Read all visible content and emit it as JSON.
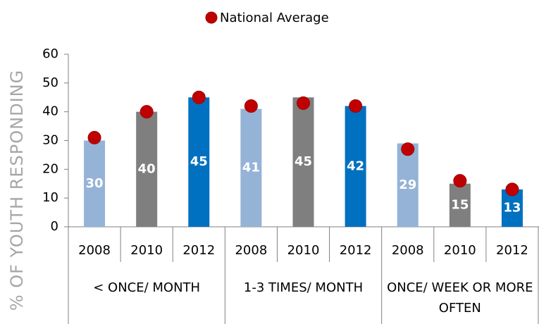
{
  "chart_data": {
    "type": "bar",
    "legend": {
      "name": "National Average",
      "color": "#c00000"
    },
    "y_label": "% OF YOUTH RESPONDING",
    "ylim": [
      0,
      60
    ],
    "yticks": [
      0,
      10,
      20,
      30,
      40,
      50,
      60
    ],
    "grid": false,
    "colors": [
      "#95b3d7",
      "#7f7f7f",
      "#0070c0"
    ],
    "groups": [
      {
        "label": "< ONCE/ MONTH",
        "categories": [
          "2008",
          "2010",
          "2012"
        ],
        "values": [
          30,
          40,
          45
        ],
        "average": [
          31,
          40,
          45
        ]
      },
      {
        "label": "1-3 TIMES/ MONTH",
        "categories": [
          "2008",
          "2010",
          "2012"
        ],
        "values": [
          41,
          45,
          42
        ],
        "average": [
          42,
          43,
          42
        ]
      },
      {
        "label": "ONCE/ WEEK OR MORE OFTEN",
        "categories": [
          "2008",
          "2010",
          "2012"
        ],
        "values": [
          29,
          15,
          13
        ],
        "average": [
          27,
          16,
          13
        ]
      }
    ]
  }
}
